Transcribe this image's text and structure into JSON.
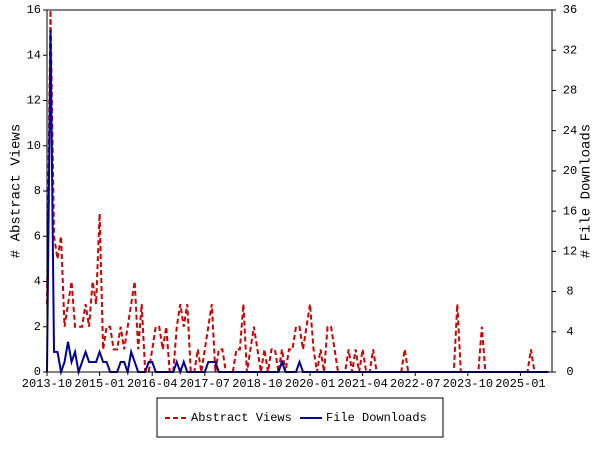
{
  "chart_data": {
    "type": "line",
    "y_label": "# Abstract Views",
    "y2_label": "# File Downloads",
    "x": [
      "2013-10",
      "2013-11",
      "2013-12",
      "2014-01",
      "2014-02",
      "2014-03",
      "2014-04",
      "2014-05",
      "2014-06",
      "2014-07",
      "2014-08",
      "2014-09",
      "2014-10",
      "2014-11",
      "2014-12",
      "2015-01",
      "2015-02",
      "2015-03",
      "2015-04",
      "2015-05",
      "2015-06",
      "2015-07",
      "2015-08",
      "2015-09",
      "2015-10",
      "2015-11",
      "2015-12",
      "2016-01",
      "2016-02",
      "2016-03",
      "2016-04",
      "2016-05",
      "2016-06",
      "2016-07",
      "2016-08",
      "2016-09",
      "2016-10",
      "2016-11",
      "2016-12",
      "2017-01",
      "2017-02",
      "2017-03",
      "2017-04",
      "2017-05",
      "2017-06",
      "2017-07",
      "2017-08",
      "2017-09",
      "2017-10",
      "2017-11",
      "2017-12",
      "2018-01",
      "2018-02",
      "2018-03",
      "2018-04",
      "2018-05",
      "2018-06",
      "2018-07",
      "2018-08",
      "2018-09",
      "2018-10",
      "2018-11",
      "2018-12",
      "2019-01",
      "2019-02",
      "2019-03",
      "2019-04",
      "2019-05",
      "2019-06",
      "2019-07",
      "2019-08",
      "2019-09",
      "2019-10",
      "2019-11",
      "2019-12",
      "2020-01",
      "2020-02",
      "2020-03",
      "2020-04",
      "2020-05",
      "2020-06",
      "2020-07",
      "2020-08",
      "2020-09",
      "2020-10",
      "2020-11",
      "2020-12",
      "2021-01",
      "2021-02",
      "2021-03",
      "2021-04",
      "2021-05",
      "2021-06",
      "2021-07",
      "2021-08",
      "2021-09",
      "2021-10",
      "2021-11",
      "2021-12",
      "2022-01",
      "2022-02",
      "2022-03",
      "2022-04",
      "2022-05",
      "2022-06",
      "2022-07",
      "2022-08",
      "2022-09",
      "2022-10",
      "2022-11",
      "2022-12",
      "2023-01",
      "2023-02",
      "2023-03",
      "2023-04",
      "2023-05",
      "2023-06",
      "2023-07",
      "2023-08",
      "2023-09",
      "2023-10",
      "2023-11",
      "2023-12",
      "2024-01",
      "2024-02",
      "2024-03",
      "2024-04",
      "2024-05",
      "2024-06",
      "2024-07",
      "2024-08",
      "2024-09",
      "2024-10",
      "2024-11",
      "2024-12",
      "2025-01",
      "2025-02",
      "2025-03",
      "2025-04",
      "2025-05",
      "2025-06",
      "2025-07",
      "2025-08",
      "2025-09"
    ],
    "xticks": [
      "2013-10",
      "2015-01",
      "2016-04",
      "2017-07",
      "2018-10",
      "2020-01",
      "2021-04",
      "2022-07",
      "2023-10",
      "2025-01"
    ],
    "ylim": [
      0,
      16
    ],
    "yticks": [
      0,
      2,
      4,
      6,
      8,
      10,
      12,
      14,
      16
    ],
    "y2lim": [
      0,
      36
    ],
    "y2ticks": [
      0,
      4,
      8,
      12,
      16,
      20,
      24,
      28,
      32,
      36
    ],
    "series": [
      {
        "name": "Abstract Views",
        "color": "#cc0000",
        "dash": true,
        "values": [
          3,
          16,
          6,
          5,
          6,
          2,
          3,
          4,
          2,
          2,
          2,
          3,
          2,
          4,
          3,
          7,
          1,
          2,
          2,
          1,
          1,
          2,
          1,
          2,
          3,
          4,
          1,
          3,
          0,
          0,
          1,
          2,
          2,
          1,
          2,
          0,
          0,
          2,
          3,
          2,
          3,
          0,
          0,
          1,
          0,
          1,
          2,
          3,
          0,
          1,
          1,
          0,
          0,
          0,
          1,
          1,
          3,
          0,
          1,
          2,
          1,
          0,
          1,
          0,
          1,
          1,
          0,
          1,
          0,
          1,
          1,
          2,
          2,
          1,
          2,
          3,
          1,
          0,
          1,
          0,
          2,
          2,
          1,
          0,
          0,
          0,
          1,
          0,
          1,
          0,
          1,
          0,
          0,
          1,
          0,
          0,
          0,
          0,
          0,
          0,
          0,
          0,
          1,
          0,
          0,
          0,
          0,
          0,
          0,
          0,
          0,
          0,
          0,
          0,
          0,
          0,
          0,
          3,
          0,
          0,
          0,
          0,
          0,
          0,
          2,
          0,
          0,
          0,
          0,
          0,
          0,
          0,
          0,
          0,
          0,
          0,
          0,
          0,
          1,
          0,
          0,
          0,
          0,
          0
        ]
      },
      {
        "name": "File Downloads",
        "color": "#000099",
        "dash": false,
        "axis": "y2",
        "values": [
          0,
          34,
          2,
          2,
          0,
          1,
          3,
          1,
          2,
          0,
          1,
          2,
          1,
          1,
          1,
          2,
          1,
          1,
          0,
          0,
          0,
          1,
          1,
          0,
          2,
          1,
          0,
          0,
          0,
          1,
          1,
          0,
          0,
          0,
          0,
          0,
          0,
          1,
          0,
          1,
          0,
          0,
          0,
          0,
          0,
          0,
          1,
          1,
          1,
          0,
          0,
          0,
          0,
          0,
          0,
          0,
          0,
          0,
          0,
          0,
          0,
          0,
          0,
          0,
          0,
          0,
          0,
          1,
          0,
          0,
          0,
          0,
          1,
          0,
          0,
          0,
          0,
          0,
          0,
          0,
          0,
          0,
          0,
          0,
          0,
          0,
          0,
          0,
          0,
          0,
          0,
          0,
          0,
          0,
          0,
          0,
          0,
          0,
          0,
          0,
          0,
          0,
          0,
          0,
          0,
          0,
          0,
          0,
          0,
          0,
          0,
          0,
          0,
          0,
          0,
          0,
          0,
          0,
          0,
          0,
          0,
          0,
          0,
          0,
          0,
          0,
          0,
          0,
          0,
          0,
          0,
          0,
          0,
          0,
          0,
          0,
          0,
          0,
          0,
          0,
          0,
          0,
          0,
          0
        ]
      }
    ]
  }
}
